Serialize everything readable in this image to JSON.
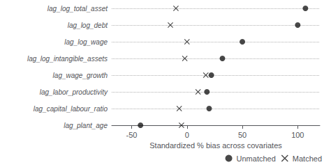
{
  "chart_data": {
    "type": "scatter",
    "categories": [
      "lag_log_total_asset",
      "lag_log_debt",
      "lag_log_wage",
      "lag_log_intangible_assets",
      "lag_wage_growth",
      "lag_labor_productivity",
      "lag_capital_labour_ratio",
      "lag_plant_age"
    ],
    "series": [
      {
        "name": "Unmatched",
        "color": "#1a1a1a",
        "marker": "circle",
        "values": [
          107,
          100,
          50,
          32,
          22,
          18,
          20,
          -42
        ]
      },
      {
        "name": "Matched",
        "color": "#1a1a1a",
        "marker": "x",
        "values": [
          -10,
          -15,
          0,
          -2,
          17,
          10,
          -7,
          -5
        ]
      }
    ],
    "xlabel": "Standardized % bias across covariates",
    "xlim": [
      -68,
      120
    ],
    "xticks": [
      -50,
      0,
      50,
      100
    ],
    "grid": true,
    "legend": "lower right"
  }
}
